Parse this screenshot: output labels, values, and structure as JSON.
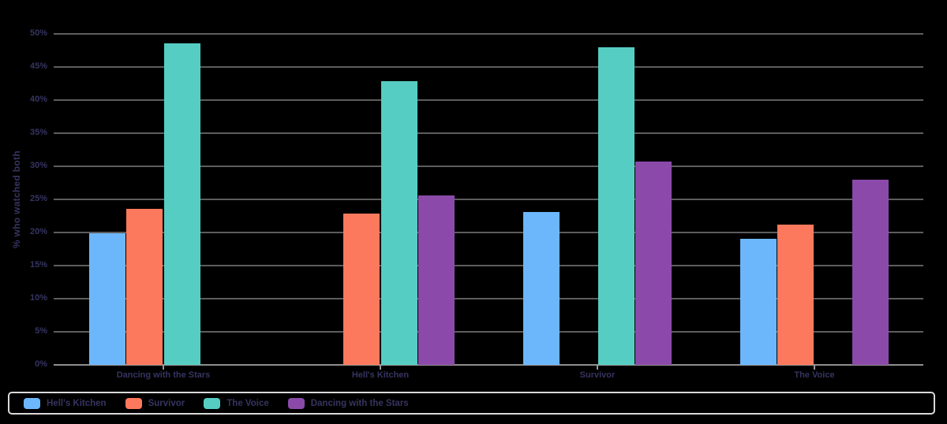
{
  "chart_data": {
    "type": "bar",
    "title": "",
    "xlabel": "",
    "ylabel": "% who watched both",
    "categories": [
      "Dancing with the Stars",
      "Hell's Kitchen",
      "Survivor",
      "The Voice"
    ],
    "series": [
      {
        "name": "Hell's Kitchen",
        "color": "#6cb7fb",
        "values": [
          19.9,
          null,
          23.1,
          19.1
        ]
      },
      {
        "name": "Survivor",
        "color": "#fd795d",
        "values": [
          23.6,
          22.8,
          null,
          21.2
        ]
      },
      {
        "name": "The Voice",
        "color": "#56cdc3",
        "values": [
          48.6,
          42.9,
          48.0,
          null
        ]
      },
      {
        "name": "Dancing with the Stars",
        "color": "#8b4aa9",
        "values": [
          null,
          25.6,
          30.7,
          28.0
        ]
      }
    ],
    "ylim": [
      0,
      50
    ],
    "ytick_step": 5,
    "yticks": [
      "0%",
      "5%",
      "10%",
      "15%",
      "20%",
      "25%",
      "30%",
      "35%",
      "40%",
      "45%",
      "50%"
    ],
    "grid": true,
    "legend_position": "bottom",
    "colors": {
      "background": "#000000",
      "text": "#363460",
      "gridline": "#5d5d5d",
      "axis_line": "#8f8f8f",
      "tick_mark": "#9a9a9a",
      "legend_border": "#d9d9d9"
    }
  }
}
